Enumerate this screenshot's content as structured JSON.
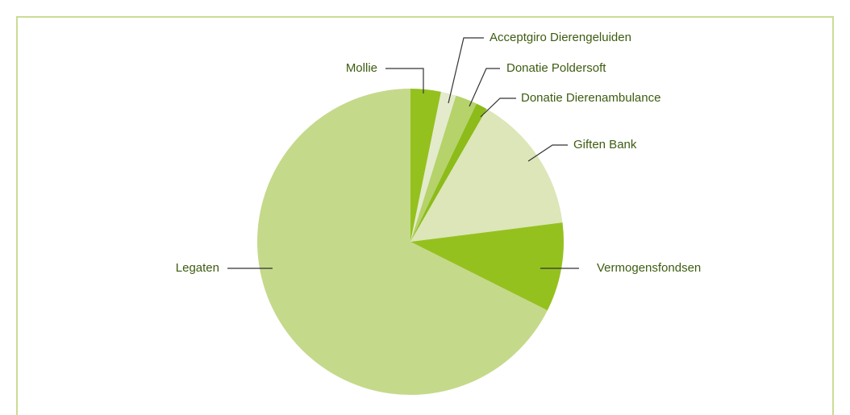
{
  "chart_data": {
    "type": "pie",
    "categories": [
      "Mollie",
      "Acceptgiro Dierengeluiden",
      "Donatie Poldersoft",
      "Donatie Dierenambulance",
      "Giften Bank",
      "Vermogensfondsen",
      "Legaten"
    ],
    "values": [
      3.2,
      1.6,
      2.3,
      1.2,
      14.7,
      9.4,
      67.6
    ],
    "colors": [
      "#95c11f",
      "#e3ebcc",
      "#b5d36a",
      "#8dbb1a",
      "#dce6b8",
      "#95c11f",
      "#c5d98a"
    ]
  }
}
